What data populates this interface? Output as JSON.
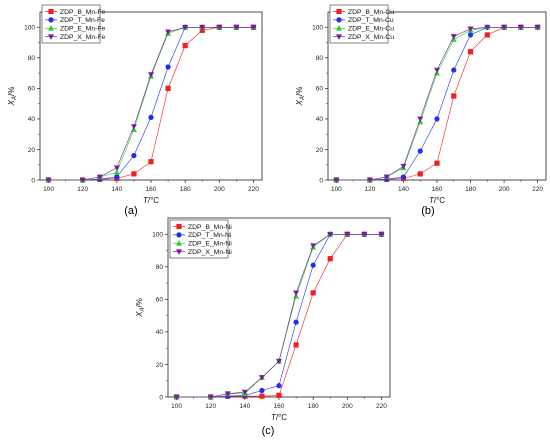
{
  "colors": {
    "B": "#f21f1f",
    "T": "#1f2ef0",
    "E": "#27d627",
    "X": "#7a1e9e",
    "axis": "#222222"
  },
  "marker_shapes": [
    "square",
    "circle",
    "triangle-up",
    "triangle-down"
  ],
  "chart_data": [
    {
      "type": "line",
      "caption": "(a)",
      "xlabel_main": "T",
      "xlabel_unit": "/°C",
      "ylabel_main": "X",
      "ylabel_sub": "A",
      "ylabel_unit": "/%",
      "xlim": [
        95,
        225
      ],
      "ylim": [
        0,
        110
      ],
      "xticks": [
        100,
        120,
        140,
        160,
        180,
        200,
        220
      ],
      "yticks": [
        0,
        20,
        40,
        60,
        80,
        100
      ],
      "legend_position": "top-left",
      "x": [
        100,
        120,
        130,
        140,
        150,
        160,
        170,
        180,
        190,
        200,
        210,
        220
      ],
      "series": [
        {
          "name": "ZDP_B_Mn-Fe",
          "key": "B",
          "values": [
            0,
            0,
            0.5,
            1,
            4,
            12,
            60,
            88,
            98,
            100,
            100,
            100
          ]
        },
        {
          "name": "ZDP_T_Mn-Fe",
          "key": "T",
          "values": [
            0,
            0,
            0.5,
            2,
            16,
            41,
            74,
            100,
            100,
            100,
            100,
            100
          ]
        },
        {
          "name": "ZDP_E_Mn-Fe",
          "key": "E",
          "values": [
            0,
            0,
            2,
            5,
            33,
            68,
            96,
            100,
            100,
            100,
            100,
            100
          ]
        },
        {
          "name": "ZDP_X_Mn-Fe",
          "key": "X",
          "values": [
            0,
            0,
            2,
            8,
            35,
            69,
            97,
            100,
            100,
            100,
            100,
            100
          ]
        }
      ]
    },
    {
      "type": "line",
      "caption": "(b)",
      "xlabel_main": "T",
      "xlabel_unit": "/°C",
      "ylabel_main": "X",
      "ylabel_sub": "A",
      "ylabel_unit": "/%",
      "xlim": [
        95,
        225
      ],
      "ylim": [
        0,
        110
      ],
      "xticks": [
        100,
        120,
        140,
        160,
        180,
        200,
        220
      ],
      "yticks": [
        0,
        20,
        40,
        60,
        80,
        100
      ],
      "legend_position": "top-left",
      "x": [
        100,
        120,
        130,
        140,
        150,
        160,
        170,
        180,
        190,
        200,
        210,
        220
      ],
      "series": [
        {
          "name": "ZDP_B_Mn-Cu",
          "key": "B",
          "values": [
            0,
            0,
            0.5,
            1,
            4,
            11,
            55,
            84,
            95,
            100,
            100,
            100
          ]
        },
        {
          "name": "ZDP_T_Mn-Cu",
          "key": "T",
          "values": [
            0,
            0,
            0.5,
            2,
            19,
            40,
            72,
            95,
            100,
            100,
            100,
            100
          ]
        },
        {
          "name": "ZDP_E_Mn-Cu",
          "key": "E",
          "values": [
            0,
            0,
            2,
            8,
            38,
            70,
            92,
            98,
            100,
            100,
            100,
            100
          ]
        },
        {
          "name": "ZDP_X_Mn-Cu",
          "key": "X",
          "values": [
            0,
            0,
            2,
            9,
            40,
            72,
            94,
            99,
            100,
            100,
            100,
            100
          ]
        }
      ]
    },
    {
      "type": "line",
      "caption": "(c)",
      "xlabel_main": "T",
      "xlabel_unit": "/°C",
      "ylabel_main": "X",
      "ylabel_sub": "A",
      "ylabel_unit": "/%",
      "xlim": [
        95,
        225
      ],
      "ylim": [
        0,
        110
      ],
      "xticks": [
        100,
        120,
        140,
        160,
        180,
        200,
        220
      ],
      "yticks": [
        0,
        20,
        40,
        60,
        80,
        100
      ],
      "legend_position": "top-left",
      "x": [
        100,
        120,
        130,
        140,
        150,
        160,
        170,
        180,
        190,
        200,
        210,
        220
      ],
      "series": [
        {
          "name": "ZDP_B_Mn-Ni",
          "key": "B",
          "values": [
            0,
            0,
            0.5,
            0.5,
            0.5,
            1,
            32,
            64,
            85,
            100,
            100,
            100
          ]
        },
        {
          "name": "ZDP_T_Mn-Ni",
          "key": "T",
          "values": [
            0,
            0,
            0.5,
            1,
            4,
            7,
            46,
            81,
            100,
            100,
            100,
            100
          ]
        },
        {
          "name": "ZDP_E_Mn-Ni",
          "key": "E",
          "values": [
            0,
            0,
            2,
            2,
            12,
            22,
            62,
            92,
            100,
            100,
            100,
            100
          ]
        },
        {
          "name": "ZDP_X_Mn-Ni",
          "key": "X",
          "values": [
            0,
            0,
            2,
            3,
            12,
            22,
            64,
            93,
            100,
            100,
            100,
            100
          ]
        }
      ]
    }
  ]
}
